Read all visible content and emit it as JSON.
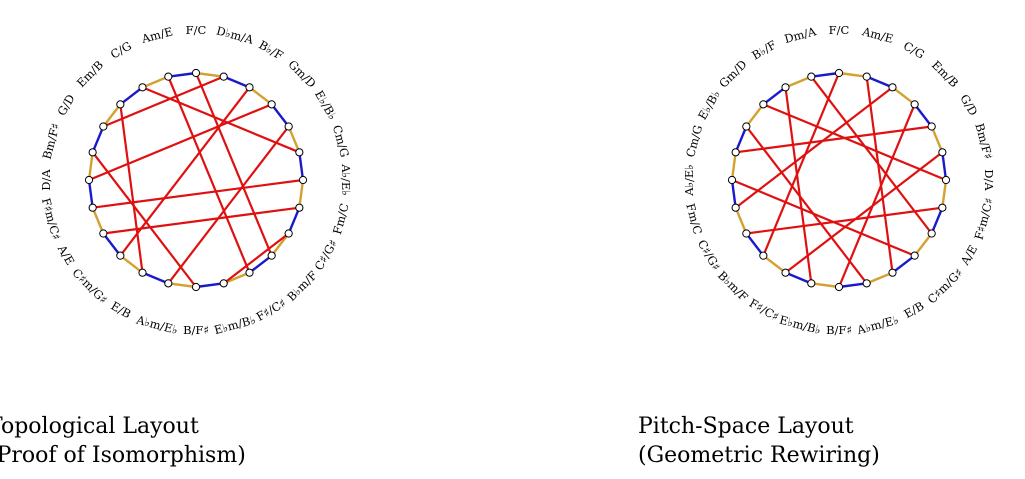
{
  "diagrams": [
    {
      "id": "topological",
      "caption_line1": "Topological Layout",
      "caption_line2": "(Proof of Isomorphism)",
      "labels": [
        "F/C",
        "D♭m/A",
        "B♭/F",
        "Gm/D",
        "E♭/B♭",
        "Cm/G",
        "A♭/E♭",
        "Fm/C",
        "C♯/G♯",
        "B♭m/F",
        "F♯/C♯",
        "E♭m/B♭",
        "B/F♯",
        "A♭m/E♭",
        "E/B",
        "C♯m/G♯",
        "A/E",
        "F♯m/C♯",
        "D/A",
        "Bm/F♯",
        "G/D",
        "Em/B",
        "C/G",
        "Am/E"
      ],
      "chords": [
        [
          0,
          9
        ],
        [
          1,
          20
        ],
        [
          2,
          15
        ],
        [
          3,
          18
        ],
        [
          4,
          13
        ],
        [
          5,
          22
        ],
        [
          6,
          17
        ],
        [
          7,
          16
        ],
        [
          8,
          11
        ],
        [
          10,
          23
        ],
        [
          12,
          19
        ],
        [
          14,
          21
        ]
      ]
    },
    {
      "id": "pitch-space",
      "caption_line1": "Pitch-Space Layout",
      "caption_line2": "(Geometric Rewiring)",
      "labels": [
        "F/C",
        "Am/E",
        "C/G",
        "Em/B",
        "G/D",
        "Bm/F♯",
        "D/A",
        "F♯m/C♯",
        "A/E",
        "C♯m/G♯",
        "E/B",
        "A♭m/E♭",
        "B/F♯",
        "E♭m/B♭",
        "F♯/C♯",
        "B♭m/F",
        "C♯/G♯",
        "Fm/C",
        "A♭/E♭",
        "Cm/G",
        "E♭/B♭",
        "Gm/D",
        "B♭/F",
        "Dm/A"
      ],
      "chords": [
        [
          0,
          15
        ],
        [
          1,
          10
        ],
        [
          2,
          17
        ],
        [
          3,
          12
        ],
        [
          4,
          19
        ],
        [
          5,
          14
        ],
        [
          6,
          21
        ],
        [
          7,
          16
        ],
        [
          8,
          23
        ],
        [
          9,
          18
        ],
        [
          11,
          20
        ],
        [
          13,
          22
        ]
      ]
    }
  ],
  "colors": {
    "edge_a": "#d4a030",
    "edge_b": "#1a1acc",
    "chord": "#e01010",
    "node_fill": "#ffffff",
    "node_stroke": "#000000"
  }
}
